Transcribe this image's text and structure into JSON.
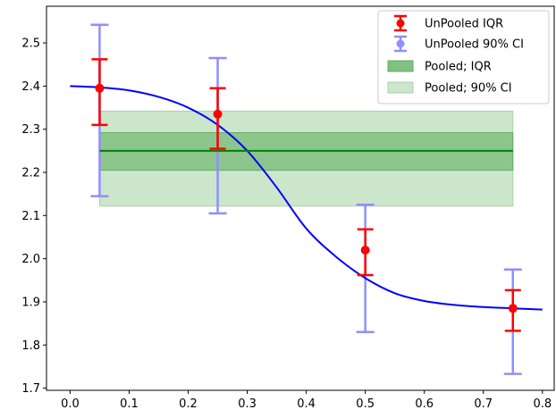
{
  "chart_data": {
    "type": "line",
    "title": "",
    "xlabel": "",
    "ylabel": "",
    "xlim": [
      -0.04,
      0.82
    ],
    "ylim": [
      1.695,
      2.585
    ],
    "x_ticks": [
      0.0,
      0.1,
      0.2,
      0.3,
      0.4,
      0.5,
      0.6,
      0.7,
      0.8
    ],
    "x_tick_labels": [
      "0.0",
      "0.1",
      "0.2",
      "0.3",
      "0.4",
      "0.5",
      "0.6",
      "0.7",
      "0.8"
    ],
    "y_ticks": [
      1.7,
      1.8,
      1.9,
      2.0,
      2.1,
      2.2,
      2.3,
      2.4,
      2.5
    ],
    "y_tick_labels": [
      "1.7",
      "1.8",
      "1.9",
      "2.0",
      "2.1",
      "2.2",
      "2.3",
      "2.4",
      "2.5"
    ],
    "grid": false,
    "legend_position": "top-right",
    "curve": {
      "color": "#0000ff",
      "x": [
        0.0,
        0.05,
        0.1,
        0.15,
        0.2,
        0.25,
        0.3,
        0.35,
        0.4,
        0.45,
        0.5,
        0.55,
        0.6,
        0.65,
        0.7,
        0.75,
        0.8
      ],
      "y": [
        2.4,
        2.397,
        2.39,
        2.375,
        2.35,
        2.31,
        2.25,
        2.165,
        2.07,
        2.005,
        1.955,
        1.92,
        1.902,
        1.893,
        1.888,
        1.885,
        1.882
      ]
    },
    "unpooled": {
      "x": [
        0.05,
        0.25,
        0.5,
        0.75
      ],
      "median": [
        2.395,
        2.335,
        2.02,
        1.885
      ],
      "iqr_low": [
        2.31,
        2.255,
        1.962,
        1.833
      ],
      "iqr_high": [
        2.462,
        2.395,
        2.068,
        1.927
      ],
      "ci90_low": [
        2.145,
        2.105,
        1.83,
        1.733
      ],
      "ci90_high": [
        2.542,
        2.465,
        2.125,
        1.975
      ],
      "iqr_color": "#ff0000",
      "ci_color": "#8f8fff"
    },
    "pooled": {
      "x_start": 0.05,
      "x_end": 0.75,
      "median": 2.25,
      "iqr": [
        2.205,
        2.292
      ],
      "ci90": [
        2.122,
        2.342
      ],
      "line_color": "#008000",
      "iqr_color": "#80c080",
      "ci_color": "#cce6cc"
    },
    "legend": [
      {
        "key": "unpooled_iqr",
        "label": "UnPooled IQR"
      },
      {
        "key": "unpooled_ci",
        "label": "UnPooled 90% CI"
      },
      {
        "key": "pooled_iqr",
        "label": "Pooled; IQR"
      },
      {
        "key": "pooled_ci",
        "label": "Pooled; 90% CI"
      }
    ]
  }
}
